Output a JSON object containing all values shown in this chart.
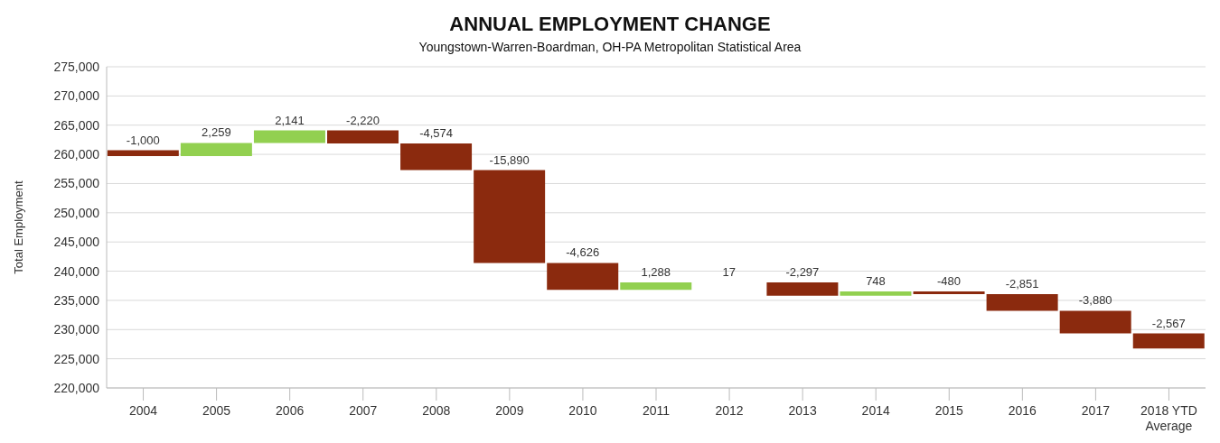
{
  "chart_data": {
    "type": "bar",
    "title": "ANNUAL EMPLOYMENT CHANGE",
    "subtitle": "Youngstown-Warren-Boardman, OH-PA Metropolitan Statistical Area",
    "ylabel": "Total Employment",
    "categories": [
      "2004",
      "2005",
      "2006",
      "2007",
      "2008",
      "2009",
      "2010",
      "2011",
      "2012",
      "2013",
      "2014",
      "2015",
      "2016",
      "2017",
      "2018 YTD Average"
    ],
    "values": [
      -1000,
      2259,
      2141,
      -2220,
      -4574,
      -15890,
      -4626,
      1288,
      17,
      -2297,
      748,
      -480,
      -2851,
      -3880,
      -2567
    ],
    "base": [
      260700,
      259700,
      261959,
      264100,
      261880,
      257306,
      241416,
      236790,
      238078,
      238095,
      235798,
      236546,
      236066,
      233215,
      229335
    ],
    "colors": [
      "#8b2a0e",
      "#92d050",
      "#92d050",
      "#8b2a0e",
      "#8b2a0e",
      "#8b2a0e",
      "#8b2a0e",
      "#92d050",
      "#92d050",
      "#8b2a0e",
      "#92d050",
      "#8b2a0e",
      "#8b2a0e",
      "#8b2a0e",
      "#8b2a0e"
    ],
    "value_labels": [
      "-1,000",
      "2,259",
      "2,141",
      "-2,220",
      "-4,574",
      "-15,890",
      "-4,626",
      "1,288",
      "17",
      "-2,297",
      "748",
      "-480",
      "-2,851",
      "-3,880",
      "-2,567"
    ],
    "ylim": [
      220000,
      275000
    ],
    "yticks": [
      {
        "value": 220000,
        "label": "220,000"
      },
      {
        "value": 225000,
        "label": "225,000"
      },
      {
        "value": 230000,
        "label": "230,000"
      },
      {
        "value": 235000,
        "label": "235,000"
      },
      {
        "value": 240000,
        "label": "240,000"
      },
      {
        "value": 245000,
        "label": "245,000"
      },
      {
        "value": 250000,
        "label": "250,000"
      },
      {
        "value": 255000,
        "label": "255,000"
      },
      {
        "value": 260000,
        "label": "260,000"
      },
      {
        "value": 265000,
        "label": "265,000"
      },
      {
        "value": 270000,
        "label": "270,000"
      },
      {
        "value": 275000,
        "label": "275,000"
      }
    ],
    "grid": "y",
    "legend": false
  }
}
